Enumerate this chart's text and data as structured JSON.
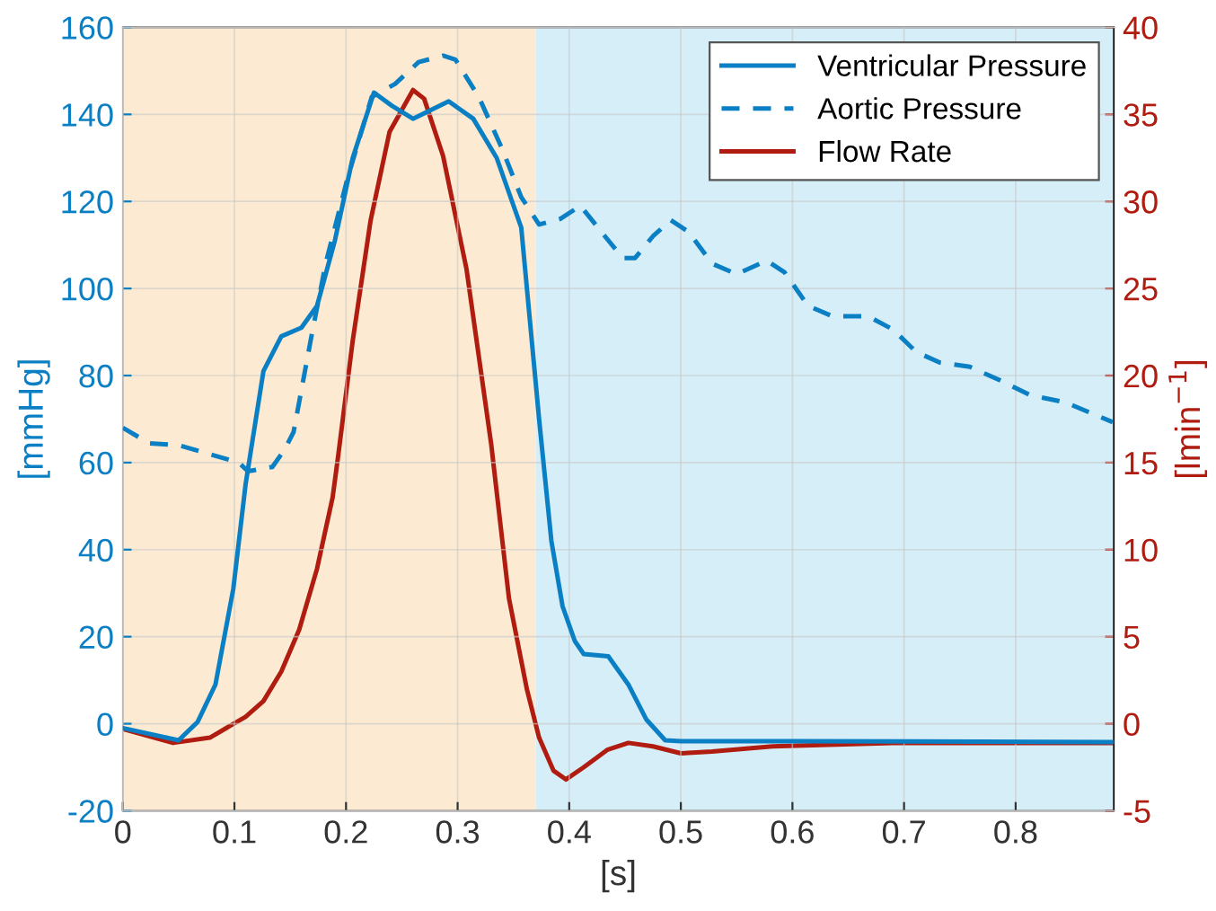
{
  "chart_data": {
    "type": "line",
    "xlabel": "[s]",
    "ylabel": "[mmHg]",
    "y2label": "[lmin$^{−1}$]",
    "xlim": [
      0,
      0.888
    ],
    "xticks": [
      0,
      0.1,
      0.2,
      0.3,
      0.4,
      0.5,
      0.6,
      0.7,
      0.8
    ],
    "ylim": [
      -20,
      160
    ],
    "yticks": [
      -20,
      0,
      20,
      40,
      60,
      80,
      100,
      120,
      140,
      160
    ],
    "y2lim": [
      -5,
      40
    ],
    "y2ticks": [
      -5,
      0,
      5,
      10,
      15,
      20,
      25,
      30,
      35,
      40
    ],
    "grid": true,
    "legend": "top right",
    "bands": [
      {
        "axis": "x",
        "from": 0,
        "to": 0.37,
        "color": "#fcebd2"
      },
      {
        "axis": "x",
        "from": 0.37,
        "to": 0.888,
        "color": "#d6eef8"
      }
    ],
    "series": [
      {
        "name": "Ventricular Pressure",
        "color": "#0a7fc4",
        "line_style": "solid",
        "x": [
          0,
          0.05,
          0.067,
          0.083,
          0.099,
          0.11,
          0.126,
          0.142,
          0.16,
          0.174,
          0.19,
          0.206,
          0.225,
          0.241,
          0.26,
          0.276,
          0.292,
          0.314,
          0.335,
          0.357,
          0.373,
          0.384,
          0.394,
          0.405,
          0.413,
          0.435,
          0.453,
          0.469,
          0.486,
          0.5,
          0.6,
          0.888
        ],
        "values": [
          -1,
          -3.8,
          0.4,
          9,
          31,
          55,
          81,
          89,
          91,
          96,
          111,
          130,
          145,
          142,
          139,
          141,
          143,
          139,
          130,
          114,
          70,
          42,
          27,
          19,
          16,
          15.5,
          9,
          1,
          -3.8,
          -4,
          -4,
          -4.2
        ]
      },
      {
        "name": "Aortic Pressure",
        "color": "#0a7fc4",
        "line_style": "dashed",
        "x": [
          0,
          0.024,
          0.05,
          0.104,
          0.112,
          0.134,
          0.145,
          0.153,
          0.169,
          0.182,
          0.201,
          0.223,
          0.244,
          0.265,
          0.287,
          0.298,
          0.319,
          0.34,
          0.357,
          0.373,
          0.392,
          0.41,
          0.432,
          0.448,
          0.459,
          0.475,
          0.491,
          0.507,
          0.528,
          0.55,
          0.577,
          0.593,
          0.614,
          0.636,
          0.668,
          0.69,
          0.711,
          0.732,
          0.759,
          0.786,
          0.813,
          0.845,
          0.887
        ],
        "values": [
          68,
          64.4,
          64,
          60,
          58,
          59,
          63,
          67,
          89,
          106,
          125,
          144,
          147,
          152,
          153.5,
          152.6,
          144,
          132,
          121,
          114.7,
          116,
          119,
          112,
          107,
          107,
          112,
          115.7,
          113,
          105.7,
          103.3,
          106.4,
          103.7,
          96,
          93.6,
          93.6,
          90.6,
          85.4,
          83,
          82,
          78.9,
          75.5,
          73.8,
          69.3
        ]
      },
      {
        "name": "Flow Rate",
        "color": "#b01c10",
        "line_style": "solid",
        "axis": "y2",
        "x": [
          0,
          0.045,
          0.078,
          0.11,
          0.126,
          0.142,
          0.158,
          0.174,
          0.188,
          0.193,
          0.206,
          0.222,
          0.239,
          0.26,
          0.27,
          0.287,
          0.308,
          0.33,
          0.346,
          0.362,
          0.373,
          0.386,
          0.397,
          0.413,
          0.434,
          0.453,
          0.475,
          0.5,
          0.528,
          0.582,
          0.69,
          0.888
        ],
        "values": [
          -0.3,
          -1.1,
          -0.8,
          0.4,
          1.3,
          3.0,
          5.4,
          8.9,
          13,
          15.4,
          22,
          28.9,
          34,
          36.4,
          35.9,
          32.6,
          26.1,
          16.1,
          7.2,
          2.0,
          -0.8,
          -2.7,
          -3.2,
          -2.5,
          -1.5,
          -1.1,
          -1.3,
          -1.7,
          -1.6,
          -1.3,
          -1.1,
          -1.1
        ]
      }
    ]
  }
}
